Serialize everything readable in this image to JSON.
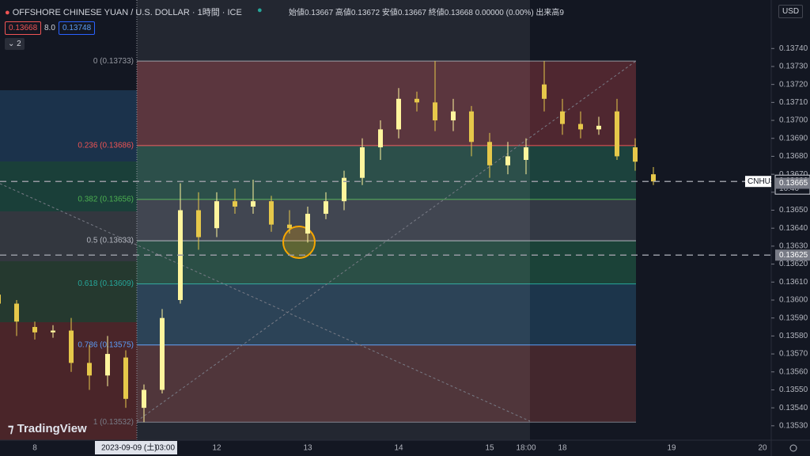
{
  "chart_data": {
    "type": "candlestick",
    "symbol": "CNHUSD",
    "last_time": "16:40",
    "categories": [
      null,
      null,
      "8",
      null,
      null,
      null,
      null,
      null,
      null,
      null,
      null,
      null,
      "12",
      null,
      null,
      null,
      null,
      "13",
      null,
      null,
      null,
      null,
      "14",
      null,
      null,
      null,
      null,
      "15",
      null,
      "18:00",
      null,
      "18",
      null,
      null,
      null,
      null,
      null,
      "19",
      null,
      null,
      null,
      null,
      "20"
    ],
    "open": [
      0.13603,
      0.13598,
      0.13585,
      0.13582,
      0.13583,
      0.13565,
      0.13558,
      0.13568,
      0.1354,
      0.1355,
      0.136,
      0.1365,
      0.1364,
      0.13655,
      0.13652,
      0.13655,
      0.13642,
      0.13637,
      0.13648,
      0.13655,
      0.13668,
      0.13685,
      0.13695,
      0.13712,
      0.1371,
      0.137,
      0.13705,
      0.13688,
      0.13675,
      0.13678,
      0.1372,
      0.13705,
      0.13698,
      0.13695,
      0.13705,
      0.13685,
      0.1367,
      null,
      null,
      null,
      null,
      null,
      null
    ],
    "high": [
      0.13606,
      0.136,
      0.13588,
      0.13586,
      0.1359,
      0.13575,
      0.1358,
      0.13572,
      0.13553,
      0.13595,
      0.13665,
      0.1366,
      0.1366,
      0.13662,
      0.13667,
      0.13658,
      0.1365,
      0.13652,
      0.1366,
      0.13672,
      0.1369,
      0.137,
      0.13718,
      0.13716,
      0.13733,
      0.13712,
      0.13708,
      0.13693,
      0.13688,
      0.1369,
      0.13733,
      0.13712,
      0.13705,
      0.13702,
      0.13712,
      0.1369,
      0.13674,
      null,
      null,
      null,
      null,
      null,
      null
    ],
    "low": [
      0.13594,
      0.1358,
      0.13578,
      0.13579,
      0.1356,
      0.1355,
      0.13552,
      0.1354,
      0.13532,
      0.13548,
      0.13598,
      0.13628,
      0.13635,
      0.13648,
      0.13648,
      0.13638,
      0.13637,
      0.13632,
      0.13645,
      0.1365,
      0.13664,
      0.13678,
      0.1369,
      0.13705,
      0.13694,
      0.13694,
      0.1368,
      0.13668,
      0.1367,
      0.1367,
      0.13705,
      0.13692,
      0.1369,
      0.13692,
      0.13678,
      0.13672,
      0.13664,
      null,
      null,
      null,
      null,
      null,
      null
    ],
    "close": [
      0.13598,
      0.13588,
      0.13582,
      0.13583,
      0.13565,
      0.13558,
      0.1357,
      0.13545,
      0.1355,
      0.1359,
      0.1365,
      0.13635,
      0.13655,
      0.13652,
      0.13655,
      0.13642,
      0.1364,
      0.13648,
      0.13655,
      0.13668,
      0.13685,
      0.13695,
      0.13712,
      0.1371,
      0.137,
      0.13705,
      0.13688,
      0.13675,
      0.1368,
      0.13685,
      0.13712,
      0.13698,
      0.13695,
      0.13697,
      0.1368,
      0.13677,
      0.13666,
      null,
      null,
      null,
      null,
      null,
      null
    ],
    "up_color": "#fff59d",
    "down_color": "#e6c84a",
    "ylim": [
      0.13522,
      0.13767
    ],
    "yticks": [
      {
        "value": 0.1353,
        "label": "0.13530"
      },
      {
        "value": 0.1354,
        "label": "0.13540"
      },
      {
        "value": 0.1355,
        "label": "0.13550"
      },
      {
        "value": 0.1356,
        "label": "0.13560"
      },
      {
        "value": 0.1357,
        "label": "0.13570"
      },
      {
        "value": 0.1358,
        "label": "0.13580"
      },
      {
        "value": 0.1359,
        "label": "0.13590"
      },
      {
        "value": 0.136,
        "label": "0.13600"
      },
      {
        "value": 0.1361,
        "label": "0.13610"
      },
      {
        "value": 0.1362,
        "label": "0.13620"
      },
      {
        "value": 0.1363,
        "label": "0.13630"
      },
      {
        "value": 0.1364,
        "label": "0.13640"
      },
      {
        "value": 0.1365,
        "label": "0.13650"
      },
      {
        "value": 0.1366,
        "label": "0.13660"
      },
      {
        "value": 0.1367,
        "label": "0.13670"
      },
      {
        "value": 0.1368,
        "label": "0.13680"
      },
      {
        "value": 0.1369,
        "label": "0.13690"
      },
      {
        "value": 0.137,
        "label": "0.13700"
      },
      {
        "value": 0.1371,
        "label": "0.13710"
      },
      {
        "value": 0.1372,
        "label": "0.13720"
      },
      {
        "value": 0.1373,
        "label": "0.13730"
      },
      {
        "value": 0.1374,
        "label": "0.13740"
      }
    ],
    "fib_levels": [
      {
        "value": 0.13733,
        "label": "0 (0.13733)",
        "color": "#9598a1"
      },
      {
        "value": 0.13686,
        "label": "0.236 (0.13686)",
        "color": "#f05454"
      },
      {
        "value": 0.13656,
        "label": "0.382 (0.13656)",
        "color": "#4caf50"
      },
      {
        "value": 0.13633,
        "label": "0.5 (0.13633)",
        "color": "#b2b5be"
      },
      {
        "value": 0.13609,
        "label": "0.618 (0.13609)",
        "color": "#26a69a"
      },
      {
        "value": 0.13575,
        "label": "0.786 (0.13575)",
        "color": "#5b9cf6"
      },
      {
        "value": 0.13532,
        "label": "1 (0.13532)",
        "color": "#787b86"
      }
    ],
    "fib_zone_colors": [
      "#5a2a32",
      "#1f4a42",
      "#3a3f4a",
      "#1d4a3c",
      "#1f3b52",
      "#4c2a2f"
    ],
    "price_markers": [
      0.13665,
      0.13625
    ]
  },
  "ui": {
    "title": "OFFSHORE CHINESE YUAN / U.S. DOLLAR · 1時間 · ICE",
    "ohlc": "始値0.13667 高値0.13672 安値0.13667 終値0.13668 0.00000 (0.00%) 出来高9",
    "sell": "0.13668",
    "spread": "8.0",
    "buy": "0.13748",
    "indicators": "2",
    "currency": "USD",
    "brand": "TradingView",
    "crosshair_date": "2023-09-09 (土)",
    "crosshair_time": "03:00"
  }
}
